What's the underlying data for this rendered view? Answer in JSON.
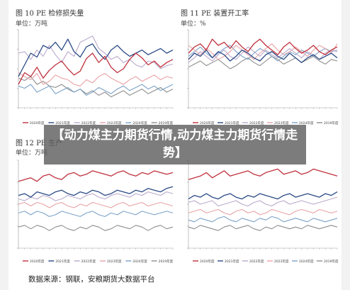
{
  "overlay": {
    "title": "【动力煤主力期货行情,动力煤主力期货行情走势】"
  },
  "footer": {
    "source": "数据来源：钢联，安粮期货大数据平台"
  },
  "legend_labels": [
    "2020年度",
    "2021年度",
    "2022年度",
    "2023年度",
    "2024年度",
    "2019年度"
  ],
  "colors": [
    "#c0313e",
    "#2a4a86",
    "#b9aacb",
    "#e8a3a6",
    "#7da3c8",
    "#8e8e8e"
  ],
  "panels": [
    {
      "title": "图 10 PE 检修损失量",
      "unit": "单位：万吨"
    },
    {
      "title": "图 11 PE 装置开工率",
      "unit": "单位：%"
    },
    {
      "title": "图 12 PE 生产",
      "unit": "单位：万吨"
    },
    {
      "title": "",
      "unit": ""
    }
  ],
  "chart_data": [
    {
      "type": "line",
      "title": "图 10 PE 检修损失量",
      "ylabel": "万吨",
      "ylim": [
        0,
        100
      ],
      "x": [
        "1",
        "2",
        "3",
        "4",
        "5",
        "6",
        "7",
        "8",
        "9",
        "10",
        "11",
        "12",
        "13",
        "14",
        "15",
        "16",
        "17",
        "18",
        "19",
        "20",
        "21",
        "22",
        "23",
        "24",
        "25",
        "26"
      ],
      "series": [
        {
          "name": "2020年度",
          "values": [
            30,
            45,
            40,
            52,
            38,
            48,
            55,
            60,
            50,
            42,
            47,
            63,
            70,
            58,
            66,
            52,
            45,
            50,
            62,
            70,
            64,
            55,
            60,
            52,
            58,
            62
          ]
        },
        {
          "name": "2021年度",
          "values": [
            40,
            55,
            70,
            65,
            80,
            76,
            84,
            74,
            88,
            72,
            65,
            78,
            82,
            70,
            62,
            74,
            80,
            72,
            66,
            70,
            74,
            68,
            72,
            76,
            70,
            74
          ]
        },
        {
          "name": "2022年度",
          "values": [
            70,
            72,
            62,
            74,
            66,
            80,
            68,
            58,
            72,
            66,
            84,
            88,
            92,
            76,
            70,
            62,
            66,
            58,
            62,
            55,
            52,
            60,
            58,
            50,
            54,
            56
          ]
        },
        {
          "name": "2023年度",
          "values": [
            45,
            40,
            36,
            44,
            30,
            34,
            42,
            38,
            36,
            30,
            28,
            36,
            32,
            40,
            44,
            38,
            34,
            30,
            36,
            40,
            34,
            38,
            42,
            36,
            40,
            38
          ]
        },
        {
          "name": "2024年度",
          "values": [
            28,
            25,
            30,
            20,
            24,
            28,
            18,
            22,
            26,
            20,
            24,
            16,
            20,
            26,
            22,
            18,
            24,
            28,
            22,
            26,
            30,
            24,
            28,
            22,
            26,
            30
          ]
        },
        {
          "name": "2019年度",
          "values": [
            38,
            35,
            40,
            30,
            34,
            28,
            26,
            30,
            24,
            20,
            24,
            18,
            22,
            16,
            20,
            14,
            18,
            22,
            16,
            20,
            24,
            18,
            22,
            26,
            20,
            24
          ]
        }
      ]
    },
    {
      "type": "line",
      "title": "图 11 PE 装置开工率",
      "ylabel": "%",
      "ylim": [
        0,
        100
      ],
      "x": [
        "1",
        "2",
        "3",
        "4",
        "5",
        "6",
        "7",
        "8",
        "9",
        "10",
        "11",
        "12",
        "13",
        "14",
        "15",
        "16",
        "17",
        "18",
        "19",
        "20",
        "21",
        "22",
        "23",
        "24",
        "25",
        "26"
      ],
      "series": [
        {
          "name": "2020年度",
          "values": [
            70,
            78,
            82,
            74,
            88,
            80,
            84,
            76,
            86,
            78,
            72,
            82,
            88,
            80,
            74,
            68,
            78,
            84,
            76,
            70,
            74,
            80,
            72,
            68,
            74,
            78
          ]
        },
        {
          "name": "2021年度",
          "values": [
            62,
            70,
            66,
            74,
            64,
            72,
            68,
            60,
            66,
            74,
            70,
            64,
            60,
            68,
            72,
            66,
            62,
            70,
            64,
            58,
            64,
            68,
            62,
            66,
            70,
            64
          ]
        },
        {
          "name": "2022年度",
          "values": [
            58,
            64,
            72,
            66,
            60,
            68,
            74,
            66,
            62,
            70,
            78,
            72,
            66,
            74,
            68,
            64,
            70,
            76,
            70,
            64,
            72,
            68,
            62,
            70,
            74,
            72
          ]
        },
        {
          "name": "2023年度",
          "values": [
            80,
            74,
            68,
            76,
            70,
            62,
            66,
            72,
            80,
            74,
            68,
            62,
            70,
            76,
            82,
            74,
            68,
            72,
            78,
            72,
            66,
            74,
            80,
            76,
            70,
            82
          ]
        },
        {
          "name": "2024年度",
          "values": [
            66,
            72,
            78,
            70,
            64,
            70,
            76,
            80,
            72,
            66,
            62,
            70,
            76,
            72,
            66,
            60,
            66,
            72,
            68,
            74,
            70,
            66,
            72,
            76,
            72,
            74
          ]
        },
        {
          "name": "2019年度",
          "values": [
            52,
            56,
            60,
            54,
            58,
            62,
            56,
            50,
            54,
            60,
            64,
            58,
            54,
            60,
            66,
            62,
            56,
            60,
            64,
            58,
            62,
            66,
            60,
            56,
            62,
            60
          ]
        }
      ]
    },
    {
      "type": "line",
      "title": "图 12 PE 生产",
      "ylabel": "万吨",
      "ylim": [
        0,
        100
      ],
      "x": [
        "1",
        "2",
        "3",
        "4",
        "5",
        "6",
        "7",
        "8",
        "9",
        "10",
        "11",
        "12",
        "13",
        "14",
        "15",
        "16",
        "17",
        "18",
        "19",
        "20",
        "21",
        "22",
        "23",
        "24",
        "25",
        "26"
      ],
      "series": [
        {
          "name": "2020年度",
          "values": [
            76,
            78,
            80,
            76,
            82,
            84,
            80,
            78,
            84,
            86,
            82,
            84,
            88,
            86,
            84,
            82,
            86,
            88,
            84,
            82,
            86,
            84,
            88,
            86,
            84,
            86
          ]
        },
        {
          "name": "2021年度",
          "values": [
            60,
            62,
            58,
            64,
            62,
            60,
            64,
            66,
            62,
            60,
            64,
            62,
            66,
            64,
            60,
            62,
            66,
            64,
            62,
            66,
            64,
            68,
            66,
            64,
            68,
            70
          ]
        },
        {
          "name": "2022年度",
          "values": [
            56,
            54,
            58,
            56,
            60,
            58,
            54,
            56,
            60,
            58,
            56,
            60,
            62,
            58,
            56,
            60,
            62,
            60,
            58,
            62,
            60,
            64,
            62,
            60,
            64,
            62
          ]
        },
        {
          "name": "2023年度",
          "values": [
            50,
            52,
            48,
            52,
            50,
            46,
            50,
            52,
            48,
            46,
            50,
            48,
            52,
            50,
            48,
            46,
            50,
            52,
            48,
            50,
            52,
            48,
            50,
            52,
            50,
            48
          ]
        },
        {
          "name": "2024年度",
          "values": [
            40,
            42,
            38,
            42,
            40,
            36,
            38,
            42,
            40,
            38,
            36,
            40,
            42,
            38,
            36,
            40,
            38,
            42,
            40,
            38,
            42,
            40,
            38,
            40,
            42,
            40
          ]
        },
        {
          "name": "2019年度",
          "values": [
            24,
            26,
            22,
            26,
            24,
            20,
            24,
            26,
            22,
            20,
            24,
            22,
            26,
            24,
            20,
            22,
            26,
            24,
            22,
            26,
            24,
            20,
            24,
            26,
            22,
            24
          ]
        }
      ]
    },
    {
      "type": "line",
      "title": "",
      "ylabel": "",
      "ylim": [
        0,
        100
      ],
      "x": [
        "1",
        "2",
        "3",
        "4",
        "5",
        "6",
        "7",
        "8",
        "9",
        "10",
        "11",
        "12",
        "13",
        "14",
        "15",
        "16",
        "17",
        "18",
        "19",
        "20",
        "21",
        "22",
        "23",
        "24",
        "25",
        "26"
      ],
      "series": [
        {
          "name": "2020年度",
          "values": [
            78,
            80,
            82,
            86,
            80,
            84,
            88,
            82,
            84,
            86,
            88,
            84,
            82,
            86,
            88,
            90,
            84,
            86,
            88,
            84,
            86,
            90,
            88,
            86,
            84,
            82
          ]
        },
        {
          "name": "2021年度",
          "values": [
            56,
            60,
            58,
            62,
            58,
            56,
            60,
            62,
            58,
            56,
            60,
            58,
            62,
            60,
            58,
            56,
            60,
            62,
            58,
            60,
            62,
            60,
            58,
            62,
            60,
            64
          ]
        },
        {
          "name": "2022年度",
          "values": [
            52,
            54,
            50,
            52,
            54,
            48,
            50,
            52,
            54,
            50,
            48,
            52,
            54,
            50,
            48,
            52,
            54,
            50,
            52,
            54,
            52,
            50,
            52,
            54,
            56,
            58
          ]
        },
        {
          "name": "2023年度",
          "values": [
            40,
            42,
            44,
            40,
            42,
            44,
            40,
            38,
            42,
            44,
            40,
            42,
            38,
            40,
            44,
            42,
            40,
            38,
            42,
            44,
            42,
            40,
            44,
            42,
            40,
            42
          ]
        },
        {
          "name": "2024年度",
          "values": [
            32,
            30,
            34,
            32,
            30,
            34,
            36,
            32,
            30,
            34,
            32,
            30,
            34,
            32,
            36,
            34,
            30,
            32,
            34,
            32,
            30,
            34,
            32,
            30,
            32,
            34
          ]
        },
        {
          "name": "2019年度",
          "values": [
            24,
            22,
            26,
            24,
            22,
            20,
            24,
            26,
            22,
            24,
            26,
            22,
            20,
            24,
            22,
            26,
            24,
            22,
            24,
            22,
            26,
            24,
            22,
            24,
            26,
            24
          ]
        }
      ]
    }
  ]
}
